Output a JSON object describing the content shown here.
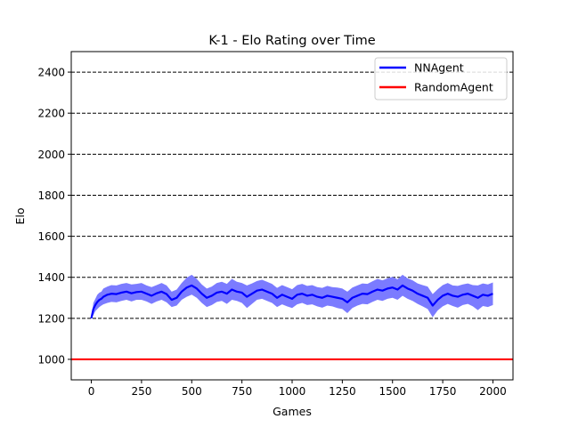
{
  "chart_data": {
    "type": "line",
    "title": "K-1 - Elo Rating over Time",
    "xlabel": "Games",
    "ylabel": "Elo",
    "xlim": [
      -100,
      2100
    ],
    "ylim": [
      900,
      2500
    ],
    "xticks": [
      0,
      250,
      500,
      750,
      1000,
      1250,
      1500,
      1750,
      2000
    ],
    "yticks": [
      1000,
      1200,
      1400,
      1600,
      1800,
      2000,
      2200,
      2400
    ],
    "grid": "horizontal dashed",
    "legend_position": "top-right",
    "series": [
      {
        "name": "NNAgent",
        "color": "#0000ff",
        "band_color": "#7b7bff",
        "x": [
          0,
          10,
          20,
          30,
          40,
          50,
          60,
          80,
          100,
          125,
          150,
          175,
          200,
          225,
          250,
          275,
          300,
          325,
          350,
          375,
          400,
          425,
          450,
          475,
          500,
          525,
          550,
          575,
          600,
          625,
          650,
          675,
          700,
          725,
          750,
          775,
          800,
          825,
          850,
          875,
          900,
          925,
          950,
          975,
          1000,
          1025,
          1050,
          1075,
          1100,
          1125,
          1150,
          1175,
          1200,
          1225,
          1250,
          1275,
          1300,
          1325,
          1350,
          1375,
          1400,
          1425,
          1450,
          1475,
          1500,
          1525,
          1550,
          1575,
          1600,
          1625,
          1650,
          1675,
          1700,
          1725,
          1750,
          1775,
          1800,
          1825,
          1850,
          1875,
          1900,
          1925,
          1950,
          1975,
          2000
        ],
        "values": [
          1200,
          1245,
          1265,
          1280,
          1290,
          1295,
          1305,
          1315,
          1320,
          1318,
          1325,
          1330,
          1322,
          1328,
          1330,
          1320,
          1310,
          1322,
          1330,
          1318,
          1290,
          1300,
          1330,
          1350,
          1360,
          1345,
          1320,
          1300,
          1310,
          1325,
          1330,
          1320,
          1340,
          1330,
          1325,
          1305,
          1320,
          1335,
          1340,
          1330,
          1320,
          1300,
          1315,
          1305,
          1295,
          1315,
          1320,
          1310,
          1315,
          1305,
          1300,
          1310,
          1305,
          1300,
          1295,
          1278,
          1300,
          1310,
          1320,
          1318,
          1330,
          1340,
          1335,
          1345,
          1350,
          1340,
          1360,
          1345,
          1335,
          1320,
          1310,
          1300,
          1262,
          1290,
          1310,
          1320,
          1310,
          1305,
          1315,
          1320,
          1310,
          1300,
          1315,
          1310,
          1320
        ],
        "lower": [
          1200,
          1215,
          1235,
          1245,
          1255,
          1262,
          1268,
          1275,
          1280,
          1278,
          1285,
          1290,
          1282,
          1290,
          1290,
          1282,
          1270,
          1282,
          1290,
          1278,
          1255,
          1262,
          1290,
          1305,
          1315,
          1300,
          1275,
          1255,
          1265,
          1280,
          1285,
          1270,
          1290,
          1285,
          1275,
          1250,
          1270,
          1290,
          1295,
          1285,
          1275,
          1255,
          1268,
          1258,
          1250,
          1268,
          1275,
          1265,
          1268,
          1258,
          1252,
          1262,
          1258,
          1250,
          1245,
          1225,
          1250,
          1262,
          1270,
          1268,
          1280,
          1290,
          1285,
          1295,
          1300,
          1290,
          1310,
          1295,
          1285,
          1270,
          1258,
          1245,
          1205,
          1238,
          1258,
          1270,
          1260,
          1252,
          1265,
          1270,
          1258,
          1240,
          1260,
          1255,
          1265
        ],
        "upper": [
          1200,
          1275,
          1295,
          1315,
          1325,
          1330,
          1345,
          1355,
          1362,
          1360,
          1368,
          1372,
          1365,
          1368,
          1372,
          1360,
          1352,
          1362,
          1372,
          1360,
          1330,
          1340,
          1372,
          1398,
          1412,
          1392,
          1365,
          1345,
          1355,
          1372,
          1378,
          1368,
          1392,
          1378,
          1372,
          1360,
          1370,
          1382,
          1388,
          1378,
          1368,
          1348,
          1362,
          1352,
          1342,
          1362,
          1368,
          1358,
          1362,
          1352,
          1348,
          1358,
          1352,
          1350,
          1345,
          1330,
          1350,
          1360,
          1370,
          1368,
          1380,
          1392,
          1385,
          1395,
          1402,
          1390,
          1412,
          1395,
          1385,
          1370,
          1362,
          1355,
          1318,
          1342,
          1362,
          1372,
          1360,
          1358,
          1365,
          1370,
          1362,
          1360,
          1370,
          1365,
          1375
        ]
      },
      {
        "name": "RandomAgent",
        "color": "#ff0000",
        "x": [
          -100,
          2100
        ],
        "values": [
          1000,
          1000
        ]
      }
    ]
  }
}
